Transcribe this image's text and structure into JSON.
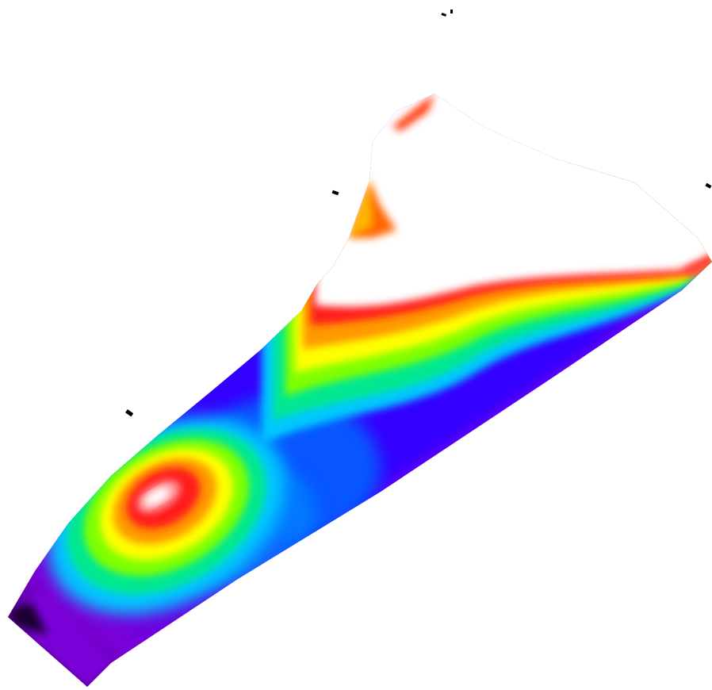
{
  "figure": {
    "kind": "interpolated contour heatmap",
    "palette": [
      "#2a0040",
      "#7a00d8",
      "#3300ff",
      "#0066ff",
      "#00c8ff",
      "#00e890",
      "#7fff00",
      "#ffff00",
      "#ff9900",
      "#ff1a1a",
      "#ffffff"
    ],
    "background": "#ffffff",
    "marker_color": "#000000",
    "marker_count": 6
  }
}
